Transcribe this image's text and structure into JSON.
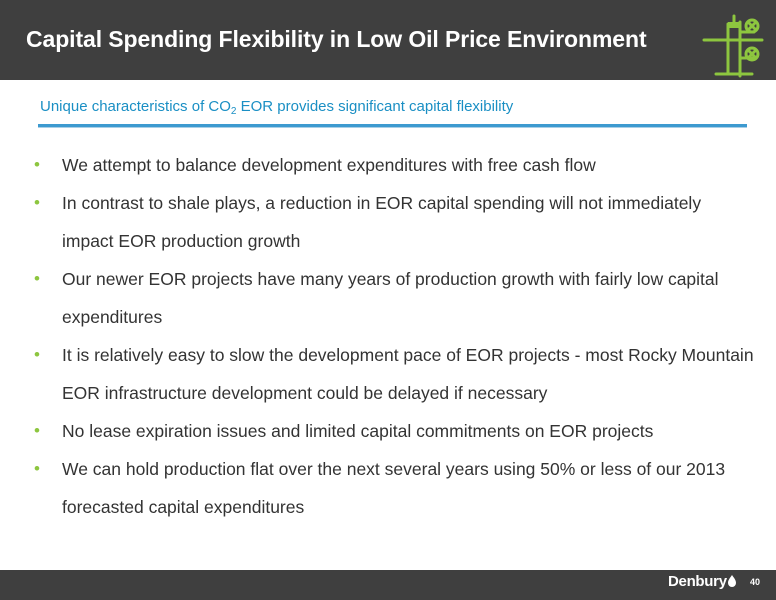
{
  "header": {
    "title": "Capital Spending Flexibility in Low Oil Price Environment",
    "logo_icon": "wellhead-icon",
    "accent_color": "#8dc63f",
    "background_color": "#3f3f3f"
  },
  "subtitle": {
    "before": "Unique characteristics of CO",
    "subscript": "2",
    "after": " EOR provides significant capital flexibility",
    "color": "#1a8fc4"
  },
  "bullets": [
    {
      "text": "We attempt to balance development expenditures with free cash flow"
    },
    {
      "text": "In contrast to shale plays, a reduction in EOR capital spending will not immediately impact EOR production growth"
    },
    {
      "text": "Our newer EOR projects have many years of production growth with fairly low capital expenditures"
    },
    {
      "text": "It is relatively easy to slow the development pace of EOR projects - most Rocky Mountain EOR infrastructure development could be delayed if necessary"
    },
    {
      "text": "No lease expiration issues and limited capital commitments on EOR projects"
    },
    {
      "text": "We can hold production flat over the next several years using 50% or less of our 2013 forecasted capital expenditures"
    }
  ],
  "footer": {
    "brand": "Denbury",
    "brand_icon": "oil-drop-icon",
    "page_number": "40"
  }
}
